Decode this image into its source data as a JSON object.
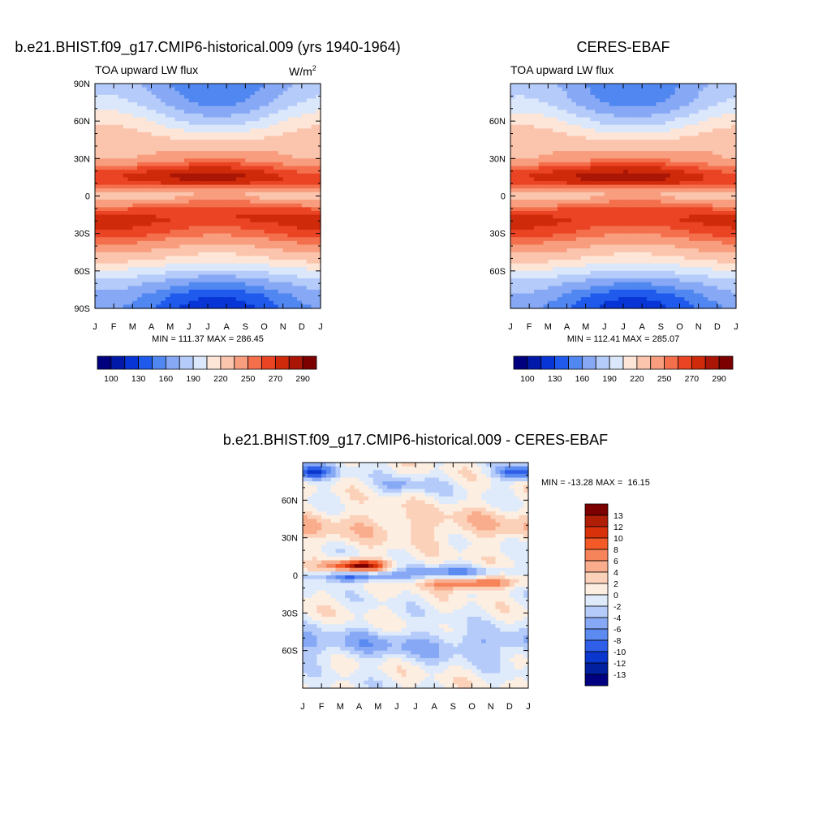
{
  "chart_data": [
    {
      "type": "heatmap",
      "title": "b.e21.BHIST.f09_g17.CMIP6-historical.009 (yrs 1940-1964)",
      "subtitle_left": "TOA upward LW flux",
      "units": "W/m",
      "units_sup": "2",
      "x_ticks": [
        "J",
        "F",
        "M",
        "A",
        "M",
        "J",
        "J",
        "A",
        "S",
        "O",
        "N",
        "D",
        "J"
      ],
      "y_ticks": [
        "90N",
        "60N",
        "30N",
        "0",
        "30S",
        "60S",
        "90S"
      ],
      "y_tick_values": [
        90,
        60,
        30,
        0,
        -30,
        -60,
        -90
      ],
      "stats": "MIN = 111.37 MAX = 286.45",
      "min": 111.37,
      "max": 286.45,
      "colorbar_labels": [
        "100",
        "130",
        "160",
        "190",
        "220",
        "250",
        "270",
        "290"
      ],
      "field_anchors_lat": [
        90,
        75,
        60,
        45,
        30,
        22,
        15,
        10,
        5,
        0,
        -5,
        -12,
        -20,
        -30,
        -40,
        -50,
        -60,
        -70,
        -80,
        -90
      ],
      "field_anchors_mid": [
        165,
        175,
        200,
        225,
        240,
        262,
        275,
        268,
        248,
        236,
        252,
        265,
        270,
        260,
        240,
        220,
        195,
        170,
        150,
        140
      ],
      "seasonal_amplitude": [
        -20,
        -20,
        -18,
        -8,
        8,
        10,
        12,
        8,
        6,
        4,
        0,
        -4,
        -8,
        -8,
        -8,
        -8,
        -8,
        -12,
        -20,
        -22
      ]
    },
    {
      "type": "heatmap",
      "title": "CERES-EBAF",
      "subtitle_left": "TOA upward LW flux",
      "x_ticks": [
        "J",
        "F",
        "M",
        "A",
        "M",
        "J",
        "J",
        "A",
        "S",
        "O",
        "N",
        "D",
        "J"
      ],
      "y_ticks": [
        "60N",
        "30N",
        "0",
        "30S",
        "60S"
      ],
      "y_tick_values": [
        60,
        30,
        0,
        -30,
        -60
      ],
      "stats": "MIN = 112.41 MAX = 285.07",
      "min": 112.41,
      "max": 285.07,
      "colorbar_labels": [
        "100",
        "130",
        "160",
        "190",
        "220",
        "250",
        "270",
        "290"
      ]
    },
    {
      "type": "heatmap",
      "title": "b.e21.BHIST.f09_g17.CMIP6-historical.009 - CERES-EBAF",
      "x_ticks": [
        "J",
        "F",
        "M",
        "A",
        "M",
        "J",
        "J",
        "A",
        "S",
        "O",
        "N",
        "D",
        "J"
      ],
      "y_ticks": [
        "60N",
        "30N",
        "0",
        "30S",
        "60S"
      ],
      "y_tick_values": [
        60,
        30,
        0,
        -30,
        -60
      ],
      "stats": "MIN = -13.28 MAX =  16.15",
      "min": -13.28,
      "max": 16.15,
      "colorbar_labels": [
        "13",
        "12",
        "10",
        "8",
        "6",
        "4",
        "2",
        "0",
        "-2",
        "-4",
        "-6",
        "-8",
        "-10",
        "-12",
        "-13"
      ]
    }
  ],
  "colors": {
    "mean_palette": [
      "#00007f",
      "#0019a8",
      "#0835d6",
      "#1f5aec",
      "#5187f1",
      "#87a9f5",
      "#b5cbf9",
      "#dbe7fb",
      "#fde5d8",
      "#fbc4ac",
      "#f89d7e",
      "#f4704d",
      "#ea4424",
      "#cf2a0a",
      "#a91606",
      "#7d0000"
    ],
    "diff_palette": [
      "#7d0000",
      "#b11e06",
      "#d9320a",
      "#f45a28",
      "#f6845a",
      "#f9ad8c",
      "#fcd1b9",
      "#fdeee2",
      "#dfebfb",
      "#b5cbf9",
      "#87a9f5",
      "#5b8af0",
      "#2f5fe9",
      "#0a38cf",
      "#00209f",
      "#000080"
    ]
  }
}
